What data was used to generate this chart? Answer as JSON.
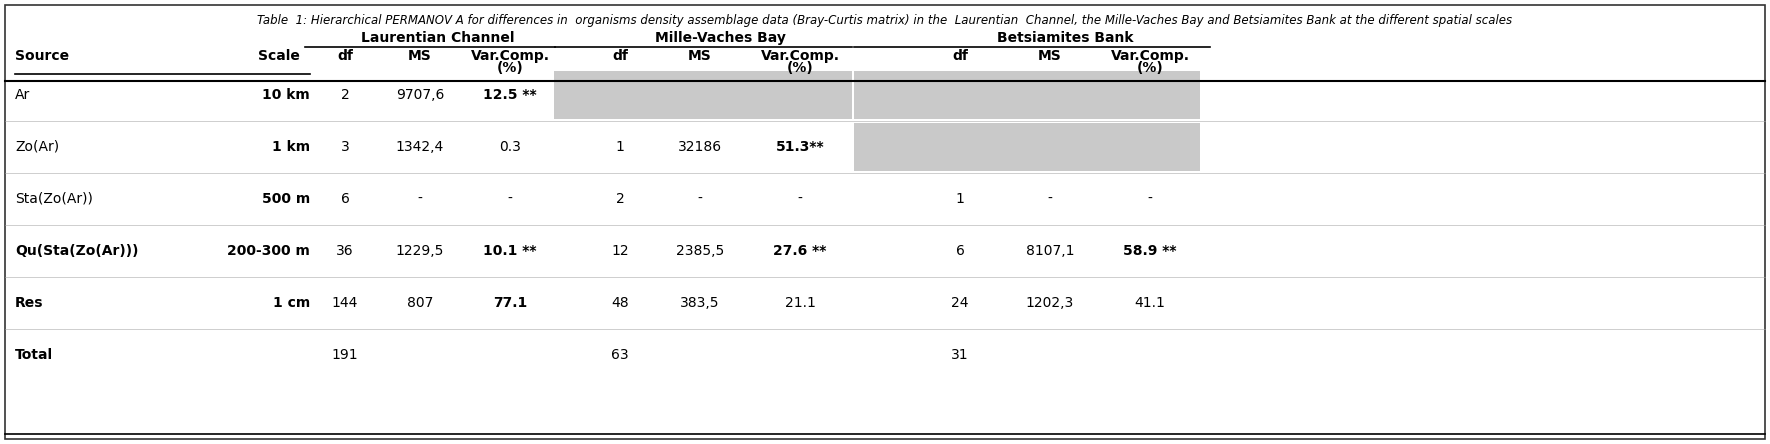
{
  "title": "Table  1: Hierarchical PERMANOV A for differences in  organisms density assemblage data (Bray-Curtis matrix) in the  Laurentian  Channel, the Mille-Vaches Bay and Betsiamites Bank at the different spatial scales",
  "group_headers": [
    "Laurentian Channel",
    "Mille-Vaches Bay",
    "Betsiamites Bank"
  ],
  "rows": [
    [
      "Ar",
      "10 km",
      "2",
      "9707,6",
      "12.5 **",
      "",
      "",
      "",
      "",
      "",
      ""
    ],
    [
      "Zo(Ar)",
      "1 km",
      "3",
      "1342,4",
      "0.3",
      "1",
      "32186",
      "51.3**",
      "",
      "",
      ""
    ],
    [
      "Sta(Zo(Ar))",
      "500 m",
      "6",
      "-",
      "-",
      "2",
      "-",
      "-",
      "1",
      "-",
      "-"
    ],
    [
      "Qu(Sta(Zo(Ar)))",
      "200-300 m",
      "36",
      "1229,5",
      "10.1 **",
      "12",
      "2385,5",
      "27.6 **",
      "6",
      "8107,1",
      "58.9 **"
    ],
    [
      "Res",
      "1 cm",
      "144",
      "807",
      "77.1",
      "48",
      "383,5",
      "21.1",
      "24",
      "1202,3",
      "41.1"
    ],
    [
      "Total",
      "",
      "191",
      "",
      "",
      "63",
      "",
      "",
      "31",
      "",
      ""
    ]
  ],
  "bold_source": [
    "Qu(Sta(Zo(Ar)))",
    "Res",
    "Total"
  ],
  "bold_scale": [
    "10 km",
    "1 km",
    "500 m",
    "200-300 m",
    "1 cm"
  ],
  "bold_varcomp": [
    "12.5 **",
    "51.3**",
    "10.1 **",
    "27.6 **",
    "58.9 **",
    "77.1"
  ],
  "gray_row0_mv": true,
  "gray_row0_bs": true,
  "gray_row1_bs": true,
  "bg_color": "#ffffff",
  "border_color": "#333333",
  "gray_color": "#c0c0c0",
  "title_fontsize": 8.5,
  "header_fontsize": 10,
  "col_header_fontsize": 10,
  "data_fontsize": 10
}
